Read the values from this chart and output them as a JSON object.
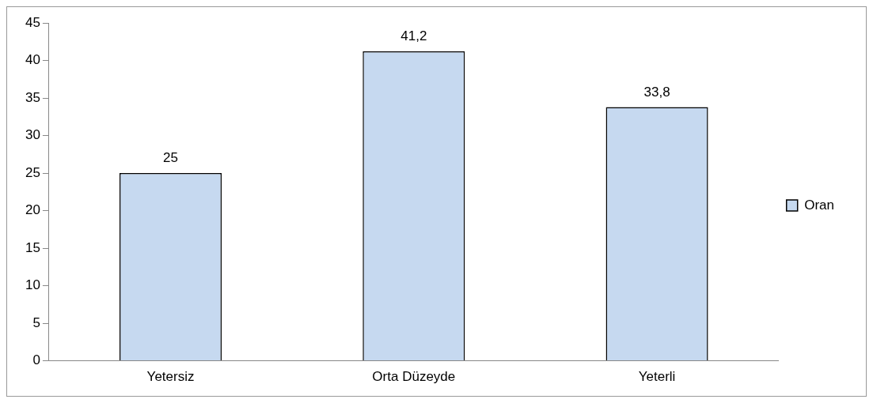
{
  "chart_data": {
    "type": "bar",
    "categories": [
      "Yetersiz",
      "Orta Düzeyde",
      "Yeterli"
    ],
    "series": [
      {
        "name": "Oran",
        "color": "#c6d9f0",
        "values": [
          25,
          41.2,
          33.8
        ],
        "value_labels": [
          "25",
          "41,2",
          "33,8"
        ]
      }
    ],
    "ylim": [
      0,
      45
    ],
    "yticks": [
      0,
      5,
      10,
      15,
      20,
      25,
      30,
      35,
      40,
      45
    ],
    "legend": "right"
  }
}
